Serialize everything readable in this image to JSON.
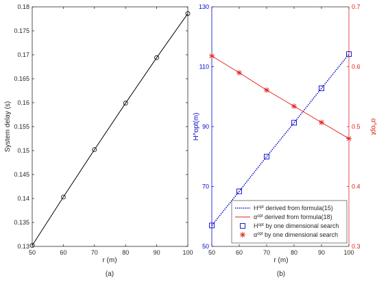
{
  "chart_data": [
    {
      "type": "line",
      "caption": "(a)",
      "xlabel": "r (m)",
      "ylabel": "System delay (s)",
      "xlim": [
        50,
        100
      ],
      "ylim": [
        0.13,
        0.18
      ],
      "xticks": [
        50,
        60,
        70,
        80,
        90,
        100
      ],
      "yticks": [
        0.13,
        0.135,
        0.14,
        0.145,
        0.15,
        0.155,
        0.16,
        0.165,
        0.17,
        0.175,
        0.18
      ],
      "grid": false,
      "series": [
        {
          "x": [
            50,
            60,
            70,
            80,
            90,
            100
          ],
          "values": [
            0.1302,
            0.1403,
            0.1502,
            0.1599,
            0.1694,
            0.1786
          ],
          "line": "solid",
          "marker": "circle",
          "color": "#000000"
        }
      ]
    },
    {
      "type": "line",
      "caption": "(b)",
      "xlabel": "r (m)",
      "ylabel_left": "H^opt(m)",
      "ylabel_right": "α^opt",
      "xlim": [
        50,
        100
      ],
      "ylim_left": [
        50,
        130
      ],
      "ylim_right": [
        0.3,
        0.7
      ],
      "xticks": [
        50,
        60,
        70,
        80,
        90,
        100
      ],
      "yticks_left": [
        50,
        70,
        90,
        110,
        130
      ],
      "yticks_right": [
        0.3,
        0.4,
        0.5,
        0.6,
        0.7
      ],
      "grid": false,
      "left_color": "#0000cc",
      "right_color": "#e0201b",
      "legend_position": "bottom-right",
      "series": [
        {
          "legend_main": "H",
          "legend_sup": "opt",
          "legend_rest": " derived from formula(15)",
          "axis": "left",
          "line": "dotted",
          "marker": "none",
          "color": "#0000cc",
          "x": [
            50,
            60,
            70,
            80,
            90,
            100
          ],
          "values": [
            57.0,
            68.4,
            80.0,
            91.3,
            102.8,
            114.2
          ]
        },
        {
          "legend_main": "α",
          "legend_sup": "opt",
          "legend_rest": " derived from formula(18)",
          "axis": "right",
          "line": "solid",
          "marker": "none",
          "color": "#e0201b",
          "x": [
            50,
            60,
            70,
            80,
            90,
            100
          ],
          "values": [
            0.618,
            0.59,
            0.561,
            0.534,
            0.507,
            0.48
          ]
        },
        {
          "legend_main": "H",
          "legend_sup": "opt",
          "legend_rest": " by one dimensional search",
          "axis": "left",
          "line": "none",
          "marker": "square",
          "color": "#0000cc",
          "x": [
            50,
            60,
            70,
            80,
            90,
            100
          ],
          "values": [
            57.0,
            68.4,
            80.0,
            91.3,
            102.8,
            114.2
          ]
        },
        {
          "legend_main": "α",
          "legend_sup": "opt",
          "legend_rest": " by one dimensional search",
          "axis": "right",
          "line": "none",
          "marker": "asterisk",
          "color": "#e0201b",
          "x": [
            50,
            60,
            70,
            80,
            90,
            100
          ],
          "values": [
            0.618,
            0.59,
            0.561,
            0.534,
            0.507,
            0.48
          ]
        }
      ]
    }
  ]
}
